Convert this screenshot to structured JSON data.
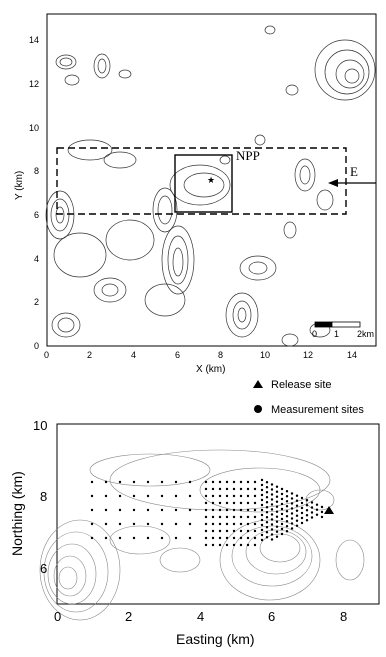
{
  "map1": {
    "x_ticks": [
      "0",
      "2",
      "4",
      "6",
      "8",
      "10",
      "12",
      "14"
    ],
    "y_ticks": [
      "0",
      "2",
      "4",
      "6",
      "8",
      "10",
      "12",
      "14"
    ],
    "ylabel": "Y (km)",
    "xlabel": "X (km)",
    "npp_label": "NPP",
    "wind_label": "E",
    "scale_labels": [
      "0",
      "1",
      "2km"
    ],
    "marker": "★"
  },
  "map2": {
    "xlabel": "Easting (km)",
    "ylabel": "Northing (km)",
    "x_ticks": [
      "0",
      "2",
      "4",
      "6",
      "8"
    ],
    "y_ticks": [
      "6",
      "8",
      "10"
    ],
    "legend": {
      "release": "Release site",
      "measurement": "Measurement sites"
    }
  }
}
